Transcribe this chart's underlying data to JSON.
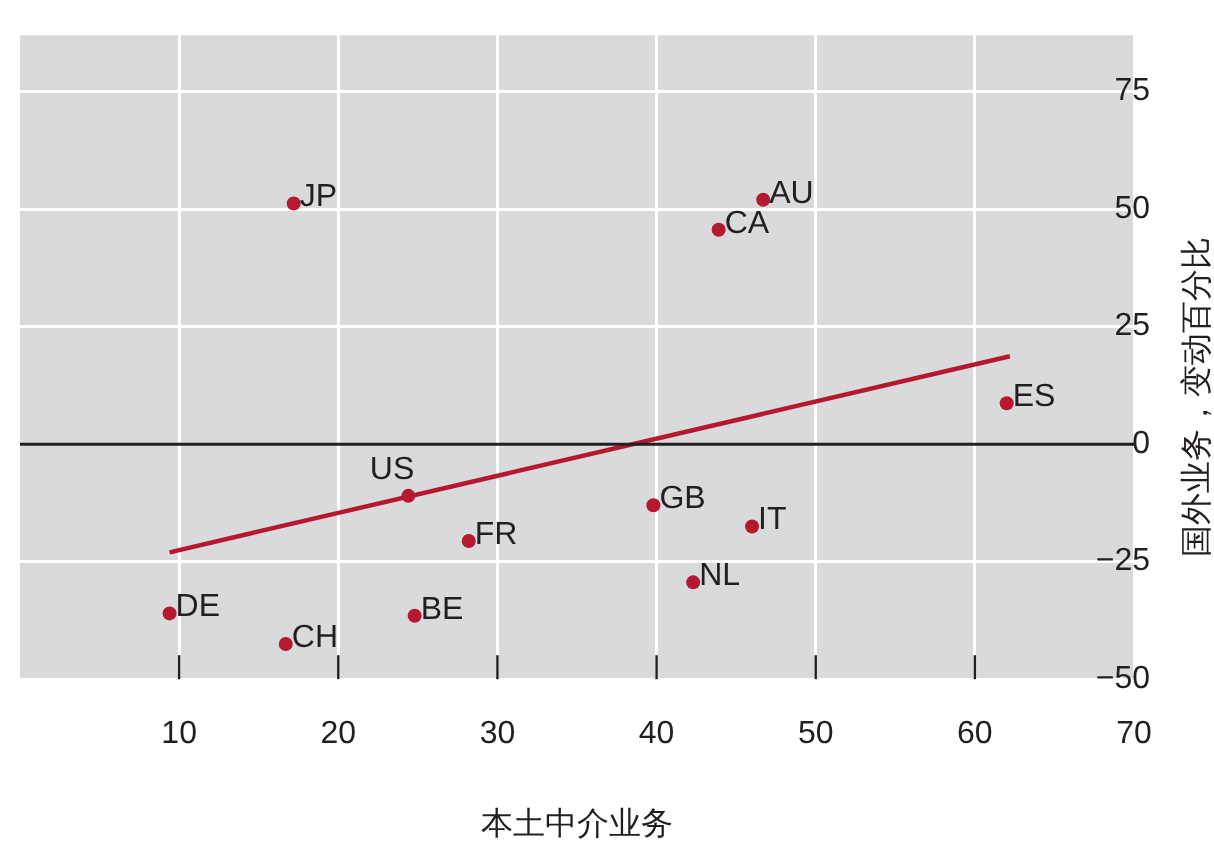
{
  "chart_data": {
    "type": "scatter",
    "xlabel": "本土中介业务",
    "ylabel": "国外业务，变动百分比",
    "xlim": [
      0,
      70
    ],
    "xticks": [
      10,
      20,
      30,
      40,
      50,
      60,
      70
    ],
    "ylim": [
      -50,
      87
    ],
    "yticks": [
      -50,
      -25,
      0,
      25,
      50,
      75
    ],
    "grid": true,
    "legend": false,
    "marker": "circle",
    "series": [
      {
        "color": "#b5182f",
        "x": [
          17.2,
          46.7,
          43.9,
          62.0,
          24.4,
          39.8,
          46.0,
          28.2,
          42.3,
          9.4,
          24.8,
          16.7
        ],
        "values": [
          51.2,
          52,
          45.6,
          8.7,
          -11,
          -13,
          -17.5,
          -20.6,
          -29.4,
          -36,
          -36.5,
          -42.5
        ]
      },
      {
        "type": "line",
        "color": "#b5182f",
        "marker": "none",
        "line_style": "solid",
        "x": [
          9.4,
          62.2
        ],
        "values": [
          -23,
          18.7
        ]
      }
    ],
    "ref_lines": [
      {
        "axis": "y",
        "value": 0,
        "color": "#231f20"
      }
    ],
    "annotations": [
      {
        "text": "JP",
        "x": 17.2,
        "y": 51.2
      },
      {
        "text": "AU",
        "x": 46.7,
        "y": 52
      },
      {
        "text": "CA",
        "x": 43.9,
        "y": 45.6
      },
      {
        "text": "ES",
        "x": 62.0,
        "y": 8.7
      },
      {
        "text": "US",
        "x": 24.4,
        "y": -11
      },
      {
        "text": "GB",
        "x": 39.8,
        "y": -13
      },
      {
        "text": "IT",
        "x": 46.0,
        "y": -17.5
      },
      {
        "text": "FR",
        "x": 28.2,
        "y": -20.6
      },
      {
        "text": "NL",
        "x": 42.3,
        "y": -29.4
      },
      {
        "text": "DE",
        "x": 9.4,
        "y": -36
      },
      {
        "text": "BE",
        "x": 24.8,
        "y": -36.5
      },
      {
        "text": "CH",
        "x": 16.7,
        "y": -42.5
      }
    ]
  }
}
